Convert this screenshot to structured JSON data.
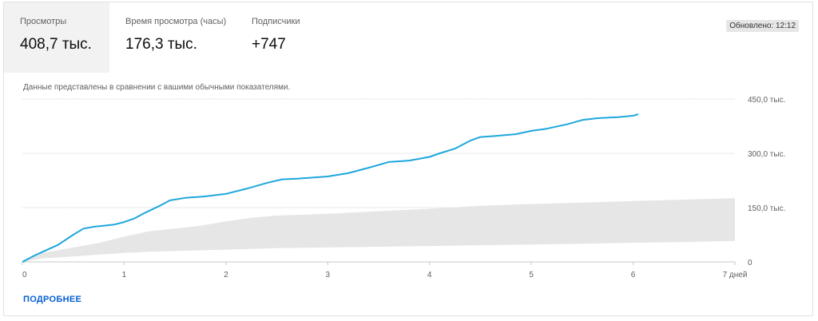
{
  "tabs": [
    {
      "label": "Просмотры",
      "value": "408,7 тыс."
    },
    {
      "label": "Время просмотра (часы)",
      "value": "176,3 тыс."
    },
    {
      "label": "Подписчики",
      "value": "+747"
    }
  ],
  "updated": "Обновлено: 12:12",
  "note": "Данные представлены в сравнении с вашими обычными показателями.",
  "more_link": "ПОДРОБНЕЕ",
  "colors": {
    "line": "#1ea7dd",
    "band": "#e6e6e6",
    "grid": "#d6d6d6",
    "link": "#065fd4"
  },
  "chart_data": {
    "type": "line",
    "xlim": [
      0,
      7
    ],
    "ylim": [
      0,
      450000
    ],
    "x_ticks": [
      {
        "value": 0,
        "label": "0"
      },
      {
        "value": 1,
        "label": "1"
      },
      {
        "value": 2,
        "label": "2"
      },
      {
        "value": 3,
        "label": "3"
      },
      {
        "value": 4,
        "label": "4"
      },
      {
        "value": 5,
        "label": "5"
      },
      {
        "value": 6,
        "label": "6"
      },
      {
        "value": 7,
        "label": "7 дней"
      }
    ],
    "y_ticks": [
      {
        "value": 0,
        "label": "0"
      },
      {
        "value": 150000,
        "label": "150,0 тыс."
      },
      {
        "value": 300000,
        "label": "300,0 тыс."
      },
      {
        "value": 450000,
        "label": "450,0 тыс."
      }
    ],
    "grid": true,
    "series": [
      {
        "values": [
          [
            0,
            0
          ],
          [
            0.1,
            15000
          ],
          [
            0.2,
            28000
          ],
          [
            0.35,
            47000
          ],
          [
            0.5,
            75000
          ],
          [
            0.6,
            92000
          ],
          [
            0.7,
            97000
          ],
          [
            0.9,
            103000
          ],
          [
            1.0,
            110000
          ],
          [
            1.1,
            120000
          ],
          [
            1.2,
            135000
          ],
          [
            1.35,
            155000
          ],
          [
            1.45,
            170000
          ],
          [
            1.6,
            177000
          ],
          [
            1.8,
            181000
          ],
          [
            2.0,
            188000
          ],
          [
            2.2,
            202000
          ],
          [
            2.4,
            218000
          ],
          [
            2.55,
            228000
          ],
          [
            2.7,
            230000
          ],
          [
            3.0,
            236000
          ],
          [
            3.2,
            245000
          ],
          [
            3.4,
            260000
          ],
          [
            3.6,
            276000
          ],
          [
            3.8,
            280000
          ],
          [
            4.0,
            290000
          ],
          [
            4.1,
            300000
          ],
          [
            4.25,
            313000
          ],
          [
            4.4,
            335000
          ],
          [
            4.5,
            345000
          ],
          [
            4.65,
            348000
          ],
          [
            4.85,
            353000
          ],
          [
            5.0,
            362000
          ],
          [
            5.15,
            368000
          ],
          [
            5.35,
            380000
          ],
          [
            5.5,
            392000
          ],
          [
            5.65,
            397000
          ],
          [
            5.85,
            400000
          ],
          [
            6.0,
            404000
          ],
          [
            6.05,
            408000
          ]
        ]
      }
    ],
    "typical_range": {
      "x": [
        0,
        0.2,
        0.5,
        0.75,
        1,
        1.25,
        1.5,
        1.75,
        2,
        2.25,
        2.5,
        3,
        3.5,
        4,
        4.5,
        5,
        5.5,
        6,
        6.5,
        7
      ],
      "low": [
        0,
        10000,
        15000,
        20000,
        25000,
        28000,
        30000,
        32000,
        34000,
        36000,
        38000,
        40000,
        42000,
        44000,
        46000,
        48000,
        50000,
        53000,
        55000,
        58000
      ],
      "high": [
        0,
        25000,
        40000,
        52000,
        70000,
        85000,
        92000,
        100000,
        112000,
        122000,
        128000,
        133000,
        140000,
        147000,
        155000,
        160000,
        164000,
        168000,
        172000,
        176000
      ]
    }
  }
}
